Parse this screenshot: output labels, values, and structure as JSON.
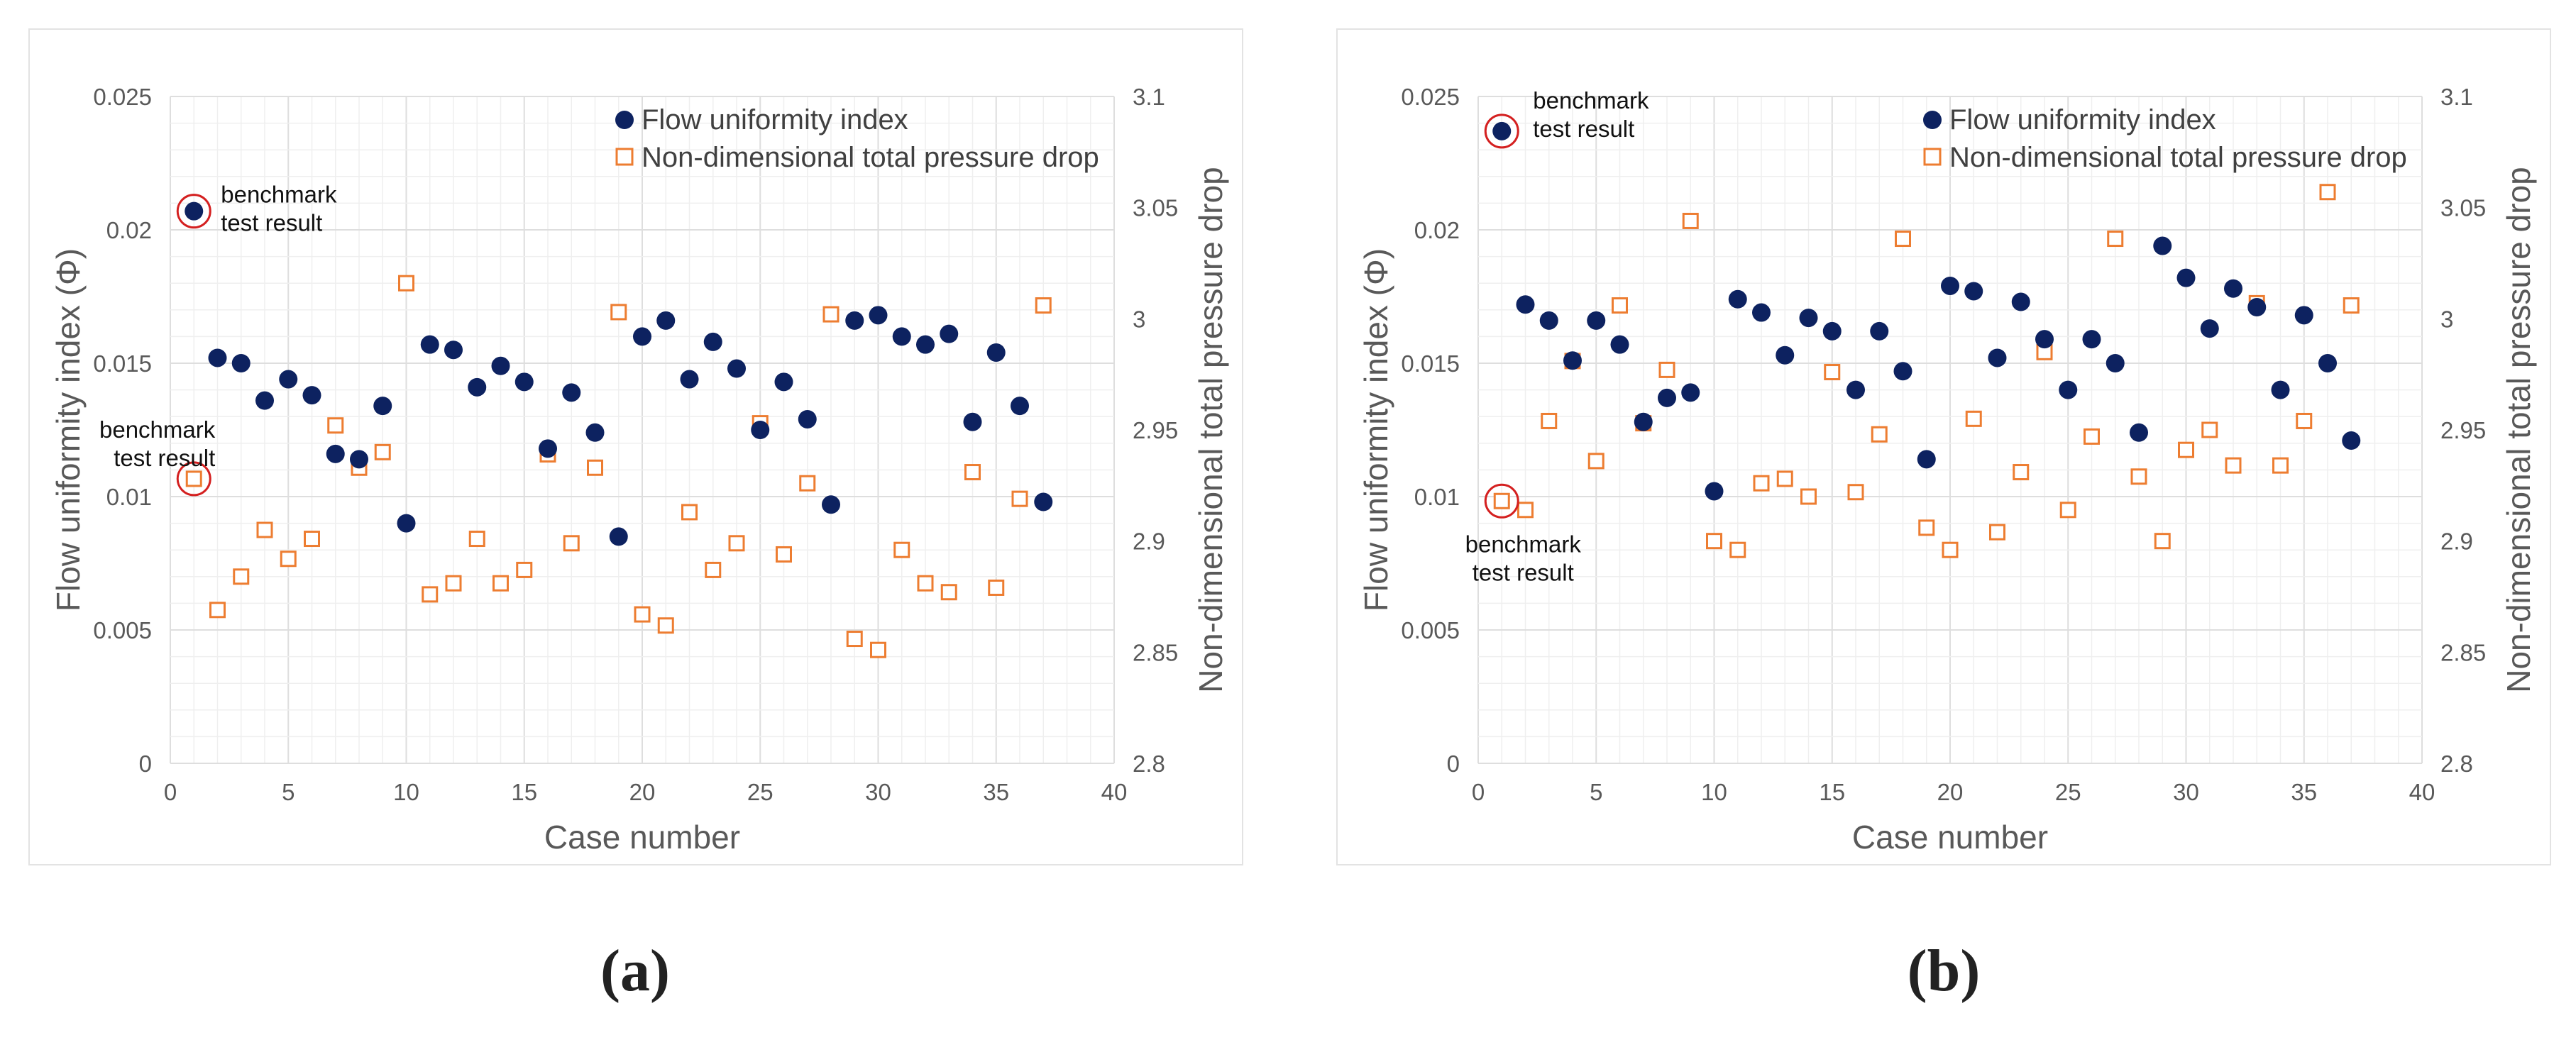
{
  "chart_data": [
    {
      "type": "scatter",
      "panel_label": "(a)",
      "xlabel": "Case number",
      "ylabel": "Flow uniformity index (Φ)",
      "y2label": "Non-dimensional total pressure drop",
      "xlim": [
        0,
        40
      ],
      "ylim": [
        0,
        0.025
      ],
      "y2lim": [
        2.8,
        3.1
      ],
      "xticks": [
        "0",
        "5",
        "10",
        "15",
        "20",
        "25",
        "30",
        "35",
        "40"
      ],
      "yticks": [
        "0",
        "0.005",
        "0.01",
        "0.015",
        "0.02",
        "0.025"
      ],
      "y2ticks": [
        "2.8",
        "2.85",
        "2.9",
        "2.95",
        "3",
        "3.05",
        "3.1"
      ],
      "grid": true,
      "legend_position": "top-right",
      "series": [
        {
          "name": "Flow uniformity index",
          "axis": "left",
          "marker": "filled-circle",
          "color": "#0d2260",
          "x": [
            1,
            2,
            3,
            4,
            5,
            6,
            7,
            8,
            9,
            10,
            11,
            12,
            13,
            14,
            15,
            16,
            17,
            18,
            19,
            20,
            21,
            22,
            23,
            24,
            25,
            26,
            27,
            28,
            29,
            30,
            31,
            32,
            33,
            34,
            35,
            36,
            37
          ],
          "y": [
            0.0207,
            0.0152,
            0.015,
            0.0136,
            0.0144,
            0.0138,
            0.0116,
            0.0114,
            0.0134,
            0.009,
            0.0157,
            0.0155,
            0.0141,
            0.0149,
            0.0143,
            0.0118,
            0.0139,
            0.0124,
            0.0085,
            0.016,
            0.0166,
            0.0144,
            0.0158,
            0.0148,
            0.0125,
            0.0143,
            0.0129,
            0.0097,
            0.0166,
            0.0168,
            0.016,
            0.0157,
            0.0161,
            0.0128,
            0.0154,
            0.0134,
            0.0098
          ]
        },
        {
          "name": "Non-dimensional total pressure drop",
          "axis": "right",
          "marker": "open-square",
          "color": "#ed7d31",
          "x": [
            1,
            2,
            3,
            4,
            5,
            6,
            7,
            8,
            9,
            10,
            11,
            12,
            13,
            14,
            15,
            16,
            17,
            18,
            19,
            20,
            21,
            22,
            23,
            24,
            25,
            26,
            27,
            28,
            29,
            30,
            31,
            32,
            33,
            34,
            35,
            36,
            37
          ],
          "y": [
            2.928,
            2.869,
            2.884,
            2.905,
            2.892,
            2.901,
            2.952,
            2.933,
            2.94,
            3.016,
            2.876,
            2.881,
            2.901,
            2.881,
            2.887,
            2.939,
            2.899,
            2.933,
            3.003,
            2.867,
            2.862,
            2.913,
            2.887,
            2.899,
            2.953,
            2.894,
            2.926,
            3.002,
            2.856,
            2.851,
            2.896,
            2.881,
            2.877,
            2.931,
            2.879,
            2.919,
            3.006
          ]
        }
      ],
      "annotations": [
        {
          "series": "Flow uniformity index",
          "x": 1,
          "y": 0.0207,
          "text": [
            "benchmark",
            "test result"
          ]
        },
        {
          "series": "Non-dimensional total pressure drop",
          "x": 1,
          "y": 2.928,
          "text": [
            "benchmark",
            "test result"
          ]
        }
      ]
    },
    {
      "type": "scatter",
      "panel_label": "(b)",
      "xlabel": "Case number",
      "ylabel": "Flow uniformity index (Φ)",
      "y2label": "Non-dimensional total pressure drop",
      "xlim": [
        0,
        40
      ],
      "ylim": [
        0,
        0.025
      ],
      "y2lim": [
        2.8,
        3.1
      ],
      "xticks": [
        "0",
        "5",
        "10",
        "15",
        "20",
        "25",
        "30",
        "35",
        "40"
      ],
      "yticks": [
        "0",
        "0.005",
        "0.01",
        "0.015",
        "0.02",
        "0.025"
      ],
      "y2ticks": [
        "2.8",
        "2.85",
        "2.9",
        "2.95",
        "3",
        "3.05",
        "3.1"
      ],
      "grid": true,
      "legend_position": "top-right",
      "series": [
        {
          "name": "Flow uniformity index",
          "axis": "left",
          "marker": "filled-circle",
          "color": "#0d2260",
          "x": [
            1,
            2,
            3,
            4,
            5,
            6,
            7,
            8,
            9,
            10,
            11,
            12,
            13,
            14,
            15,
            16,
            17,
            18,
            19,
            20,
            21,
            22,
            23,
            24,
            25,
            26,
            27,
            28,
            29,
            30,
            31,
            32,
            33,
            34,
            35,
            36,
            37
          ],
          "y": [
            0.0237,
            0.0172,
            0.0166,
            0.0151,
            0.0166,
            0.0157,
            0.0128,
            0.0137,
            0.0139,
            0.0102,
            0.0174,
            0.0169,
            0.0153,
            0.0167,
            0.0162,
            0.014,
            0.0162,
            0.0147,
            0.0114,
            0.0179,
            0.0177,
            0.0152,
            0.0173,
            0.0159,
            0.014,
            0.0159,
            0.015,
            0.0124,
            0.0194,
            0.0182,
            0.0163,
            0.0178,
            0.0171,
            0.014,
            0.0168,
            0.015,
            0.0121
          ]
        },
        {
          "name": "Non-dimensional total pressure drop",
          "axis": "right",
          "marker": "open-square",
          "color": "#ed7d31",
          "x": [
            1,
            2,
            3,
            4,
            5,
            6,
            7,
            8,
            9,
            10,
            11,
            12,
            13,
            14,
            15,
            16,
            17,
            18,
            19,
            20,
            21,
            22,
            23,
            24,
            25,
            26,
            27,
            28,
            29,
            30,
            31,
            32,
            33,
            34,
            35,
            36,
            37
          ],
          "y": [
            2.918,
            2.914,
            2.954,
            2.981,
            2.936,
            3.006,
            2.953,
            2.977,
            3.044,
            2.9,
            2.896,
            2.926,
            2.928,
            2.92,
            2.976,
            2.922,
            2.948,
            3.036,
            2.906,
            2.896,
            2.955,
            2.904,
            2.931,
            2.985,
            2.914,
            2.947,
            3.036,
            2.929,
            2.9,
            2.941,
            2.95,
            2.934,
            3.007,
            2.934,
            2.954,
            3.057,
            3.006
          ]
        }
      ],
      "annotations": [
        {
          "series": "Flow uniformity index",
          "x": 1,
          "y": 0.0237,
          "text": [
            "benchmark",
            "test result"
          ]
        },
        {
          "series": "Non-dimensional total pressure drop",
          "x": 1,
          "y": 2.918,
          "text": [
            "benchmark",
            "test result"
          ]
        }
      ]
    }
  ]
}
